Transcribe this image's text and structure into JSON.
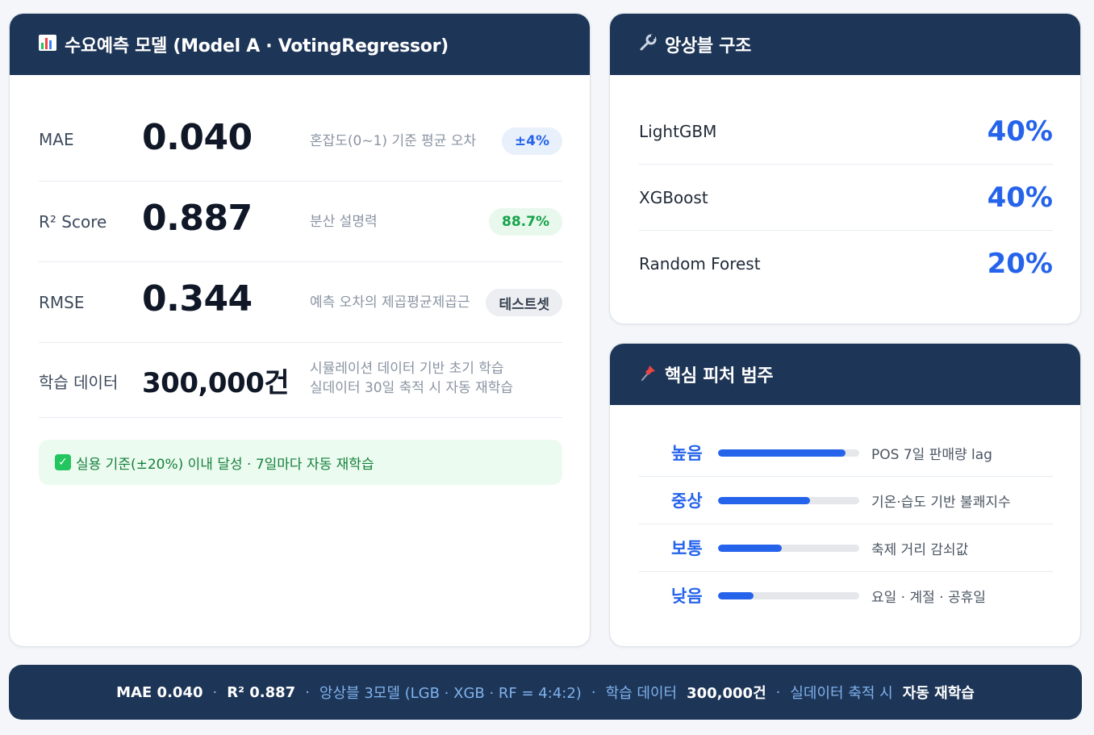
{
  "model_card": {
    "icon": "bar-chart-icon",
    "title": "수요예측 모델 (Model A · VotingRegressor)",
    "metrics": [
      {
        "label": "MAE",
        "value": "0.040",
        "desc": "혼잡도(0~1) 기준 평균 오차",
        "badge": "±4%",
        "badge_color": "#2563eb"
      },
      {
        "label": "R² Score",
        "value": "0.887",
        "desc": "분산 설명력",
        "badge": "88.7%",
        "badge_color": "#16a34a"
      },
      {
        "label": "RMSE",
        "value": "0.344",
        "desc": "예측 오차의 제곱평균제곱근",
        "badge": "테스트셋",
        "badge_color": "#374151"
      },
      {
        "label": "학습 데이터",
        "value": "300,000건",
        "desc_line1": "시뮬레이션 데이터 기반 초기 학습",
        "desc_line2": "실데이터 30일 축적 시 자동 재학습"
      }
    ],
    "note": "실용 기준(±20%) 이내 달성 · 7일마다 자동 재학습"
  },
  "ensemble_card": {
    "icon": "wrench-icon",
    "title": "앙상블 구조",
    "models": [
      {
        "name": "LightGBM",
        "weight": "40%"
      },
      {
        "name": "XGBoost",
        "weight": "40%"
      },
      {
        "name": "Random Forest",
        "weight": "20%"
      }
    ]
  },
  "feature_card": {
    "icon": "pushpin-icon",
    "title": "핵심 피처 범주",
    "features": [
      {
        "level": "높음",
        "importance": 0.9,
        "desc": "POS 7일 판매량 lag"
      },
      {
        "level": "중상",
        "importance": 0.65,
        "desc": "기온·습도 기반 불쾌지수"
      },
      {
        "level": "보통",
        "importance": 0.45,
        "desc": "축제 거리 감쇠값"
      },
      {
        "level": "낮음",
        "importance": 0.25,
        "desc": "요일 · 계절 · 공휴일"
      }
    ]
  },
  "summary_bar": {
    "mae": "MAE 0.040",
    "r2": "R² 0.887",
    "ensemble": "앙상블 3모델 (LGB · XGB · RF = 4:4:2)",
    "train_label": "학습 데이터",
    "train_value": "300,000건",
    "retrain_label": "실데이터 축적 시",
    "retrain_value": "자동 재학습"
  },
  "colors": {
    "header_navy": "#1d3557",
    "accent_blue": "#2563eb",
    "success_green": "#16a34a"
  }
}
